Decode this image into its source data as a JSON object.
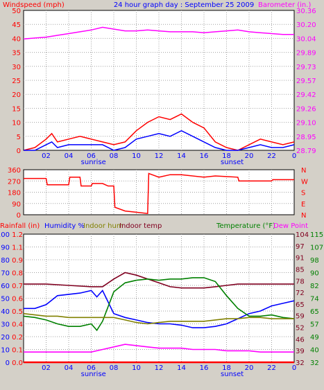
{
  "title": "24 hour graph day : September 25 2009",
  "colors": {
    "background": "#d4d0c8",
    "plot_bg": "#ffffff",
    "grid": "#a0a0a0",
    "red": "#ff0000",
    "magenta": "#ff00ff",
    "blue": "#0000ff",
    "olive": "#808000",
    "darkred": "#800020",
    "green": "#008000"
  },
  "x_ticks": [
    "02",
    "04",
    "06",
    "08",
    "10",
    "12",
    "14",
    "16",
    "18",
    "20",
    "22",
    "0"
  ],
  "x_markers": {
    "sunrise": "sunrise",
    "sunset": "sunset"
  },
  "chart_data": [
    {
      "type": "line",
      "panel": "wind-barometer",
      "x_unit": "hour",
      "left_label": "Windspeed (mph)",
      "right_label": "Barometer (in.)",
      "left_ticks": [
        "50",
        "45",
        "40",
        "35",
        "30",
        "25",
        "20",
        "15",
        "10",
        "5",
        "0"
      ],
      "right_ticks": [
        "30.36",
        "30.20",
        "30.04",
        "29.89",
        "29.73",
        "29.57",
        "29.42",
        "29.26",
        "29.10",
        "28.95",
        "28.79"
      ],
      "ylim_left": [
        0,
        50
      ],
      "ylim_right": [
        28.79,
        30.36
      ],
      "series": [
        {
          "name": "Barometer",
          "axis": "right",
          "color": "#ff00ff",
          "x": [
            0,
            1,
            2,
            3,
            4,
            5,
            6,
            7,
            8,
            9,
            10,
            11,
            12,
            13,
            14,
            15,
            16,
            17,
            18,
            19,
            20,
            21,
            22,
            23,
            24
          ],
          "y": [
            30.04,
            30.05,
            30.06,
            30.08,
            30.1,
            30.12,
            30.14,
            30.17,
            30.15,
            30.13,
            30.13,
            30.14,
            30.13,
            30.12,
            30.12,
            30.12,
            30.11,
            30.12,
            30.13,
            30.14,
            30.12,
            30.11,
            30.1,
            30.09,
            30.09
          ]
        },
        {
          "name": "Wind gust",
          "axis": "left",
          "color": "#ff0000",
          "x": [
            0,
            1,
            2,
            2.5,
            3,
            4,
            5,
            6,
            7,
            8,
            9,
            10,
            11,
            12,
            13,
            14,
            15,
            16,
            17,
            18,
            19,
            20,
            21,
            22,
            23,
            24
          ],
          "y": [
            0,
            1,
            4,
            6,
            3,
            4,
            5,
            4,
            3,
            2,
            3,
            7,
            10,
            12,
            11,
            13,
            10,
            8,
            3,
            1,
            0,
            2,
            4,
            3,
            2,
            3
          ]
        },
        {
          "name": "Wind average",
          "axis": "left",
          "color": "#0000ff",
          "x": [
            0,
            1,
            2,
            2.5,
            3,
            4,
            5,
            6,
            7,
            8,
            9,
            10,
            11,
            12,
            13,
            14,
            15,
            16,
            17,
            18,
            19,
            20,
            21,
            22,
            23,
            24
          ],
          "y": [
            0,
            0,
            2,
            3,
            1,
            2,
            2,
            2,
            2,
            0,
            1,
            4,
            5,
            6,
            5,
            7,
            5,
            3,
            1,
            0,
            0,
            1,
            2,
            1,
            1,
            2
          ]
        }
      ]
    },
    {
      "type": "line",
      "panel": "wind-direction",
      "x_unit": "hour",
      "left_ticks": [
        "360",
        "270",
        "180",
        "90",
        "0"
      ],
      "right_ticks": [
        "N",
        "W",
        "S",
        "E",
        "N"
      ],
      "ylim": [
        0,
        360
      ],
      "series": [
        {
          "name": "Wind direction",
          "color": "#ff0000",
          "x": [
            0,
            2,
            2.1,
            4,
            4.1,
            5,
            5.1,
            6,
            6.1,
            7,
            7.5,
            8,
            8.1,
            9,
            10,
            11,
            11.1,
            12,
            13,
            14,
            16,
            17,
            19,
            19.1,
            22,
            22.1,
            24
          ],
          "y": [
            290,
            290,
            240,
            240,
            300,
            300,
            230,
            230,
            250,
            250,
            230,
            230,
            60,
            30,
            20,
            10,
            330,
            300,
            320,
            320,
            300,
            310,
            300,
            270,
            270,
            280,
            280
          ]
        }
      ]
    },
    {
      "type": "line",
      "panel": "rain-humidity-temperature",
      "x_unit": "hour",
      "labels": [
        "Rainfall (in)",
        "Humidity %",
        "Indoor hum",
        "Indoor temp",
        "Temperature (°F)",
        "Dew Point"
      ],
      "label_colors": [
        "#ff0000",
        "#0000ff",
        "#808000",
        "#800020",
        "#008000",
        "#ff00ff"
      ],
      "ticks_humidity": [
        "100",
        "90",
        "80",
        "70",
        "60",
        "50",
        "40",
        "30",
        "20",
        "10",
        "0"
      ],
      "ticks_rain": [
        "1.2",
        "1.1",
        "0.9",
        "0.8",
        "0.7",
        "0.6",
        "0.5",
        "0.4",
        "0.2",
        "0.1",
        "0.0"
      ],
      "ticks_right_outer": [
        "104",
        "97",
        "91",
        "85",
        "78",
        "72",
        "65",
        "59",
        "52",
        "46",
        "39",
        "32"
      ],
      "ticks_right_inner": [
        "115",
        "107",
        "98",
        "90",
        "82",
        "74",
        "65",
        "57",
        "49",
        "40",
        "32"
      ],
      "ylim_humidity": [
        0,
        100
      ],
      "series": [
        {
          "name": "Indoor temp",
          "color": "#800020",
          "x": [
            0,
            2,
            4,
            6,
            7,
            8,
            9,
            10,
            11,
            12,
            13,
            14,
            15,
            16,
            17,
            18,
            19,
            20,
            21,
            22,
            23,
            24
          ],
          "y": [
            61,
            61,
            60,
            59,
            59,
            65,
            70,
            68,
            65,
            62,
            59,
            58,
            58,
            58,
            59,
            60,
            61,
            61,
            61,
            61,
            61,
            61
          ]
        },
        {
          "name": "Humidity %",
          "color": "#0000ff",
          "x": [
            0,
            1,
            2,
            3,
            4,
            5,
            6,
            6.5,
            7,
            8,
            9,
            10,
            11,
            12,
            13,
            14,
            15,
            16,
            17,
            18,
            19,
            20,
            21,
            22,
            23,
            24
          ],
          "y": [
            42,
            42,
            45,
            52,
            53,
            54,
            56,
            51,
            56,
            38,
            35,
            33,
            31,
            30,
            30,
            29,
            27,
            27,
            28,
            30,
            34,
            38,
            40,
            44,
            46,
            48
          ]
        },
        {
          "name": "Temperature (°F)",
          "color": "#008000",
          "x": [
            0,
            1,
            2,
            3,
            4,
            5,
            6,
            6.5,
            7,
            8,
            9,
            10,
            11,
            12,
            13,
            14,
            15,
            16,
            17,
            18,
            19,
            20,
            21,
            22,
            23,
            24
          ],
          "y": [
            36,
            35,
            33,
            30,
            28,
            28,
            30,
            25,
            32,
            55,
            62,
            64,
            65,
            64,
            65,
            65,
            66,
            66,
            63,
            52,
            42,
            36,
            36,
            37,
            35,
            34
          ]
        },
        {
          "name": "Indoor hum",
          "color": "#808000",
          "x": [
            0,
            1,
            2,
            3,
            4,
            5,
            6,
            7,
            8,
            9,
            10,
            11,
            12,
            13,
            14,
            15,
            16,
            17,
            18,
            19,
            20,
            21,
            22,
            23,
            24
          ],
          "y": [
            38,
            37,
            36,
            36,
            35,
            35,
            35,
            35,
            35,
            33,
            31,
            30,
            31,
            32,
            32,
            32,
            32,
            33,
            34,
            34,
            35,
            35,
            34,
            34,
            34
          ]
        },
        {
          "name": "Dew Point",
          "color": "#ff00ff",
          "x": [
            0,
            2,
            4,
            6,
            7,
            8,
            9,
            10,
            11,
            12,
            13,
            14,
            15,
            16,
            17,
            18,
            19,
            20,
            21,
            22,
            23,
            24
          ],
          "y": [
            8,
            8,
            8,
            8,
            10,
            12,
            14,
            13,
            12,
            11,
            11,
            11,
            10,
            10,
            10,
            9,
            9,
            9,
            8,
            8,
            8,
            8
          ]
        },
        {
          "name": "Rainfall (in)",
          "color": "#ff0000",
          "x": [
            0,
            24
          ],
          "y": [
            0,
            0
          ]
        }
      ]
    }
  ]
}
